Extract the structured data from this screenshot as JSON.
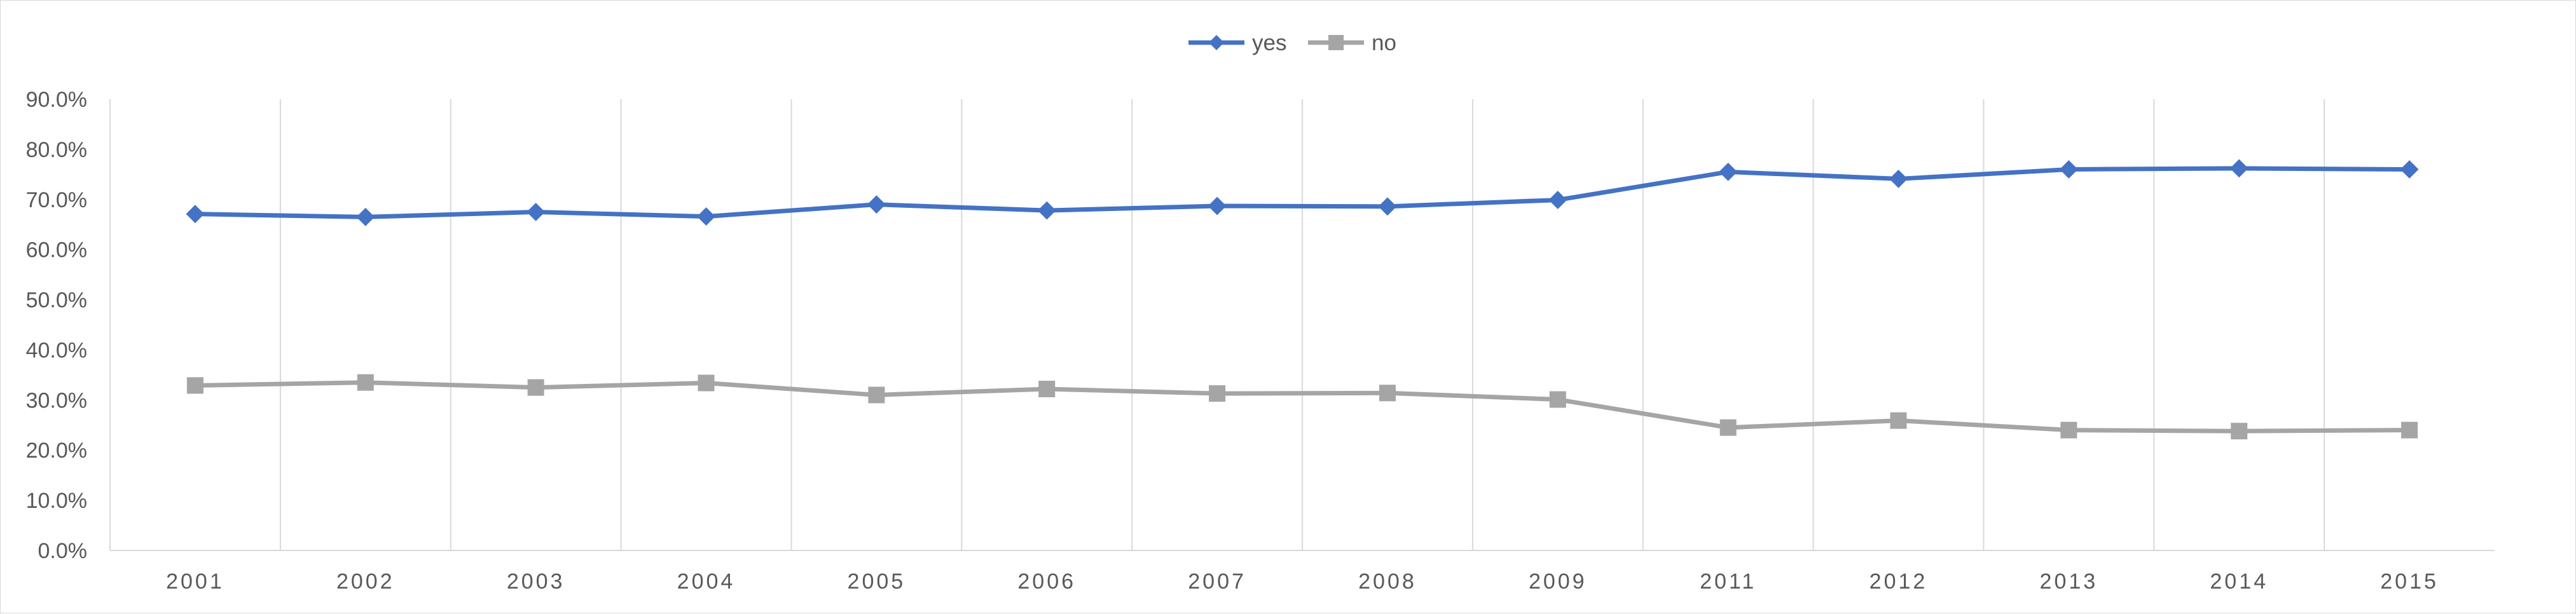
{
  "chart_data": {
    "type": "line",
    "title": "",
    "xlabel": "",
    "ylabel": "",
    "categories": [
      "2001",
      "2002",
      "2003",
      "2004",
      "2005",
      "2006",
      "2007",
      "2008",
      "2009",
      "2011",
      "2012",
      "2013",
      "2014",
      "2015"
    ],
    "series": [
      {
        "name": "yes",
        "color": "#4472C4",
        "marker": "diamond",
        "values": [
          0.671,
          0.665,
          0.675,
          0.666,
          0.69,
          0.678,
          0.687,
          0.686,
          0.699,
          0.755,
          0.741,
          0.76,
          0.762,
          0.76
        ]
      },
      {
        "name": "no",
        "color": "#A5A5A5",
        "marker": "square",
        "values": [
          0.329,
          0.335,
          0.325,
          0.334,
          0.31,
          0.322,
          0.313,
          0.314,
          0.301,
          0.245,
          0.259,
          0.24,
          0.238,
          0.24
        ]
      }
    ],
    "ylim": [
      0,
      0.9
    ],
    "yticks": [
      "0.0%",
      "10.0%",
      "20.0%",
      "30.0%",
      "40.0%",
      "50.0%",
      "60.0%",
      "70.0%",
      "80.0%",
      "90.0%"
    ],
    "grid": "vertical",
    "legend_position": "top-center"
  }
}
